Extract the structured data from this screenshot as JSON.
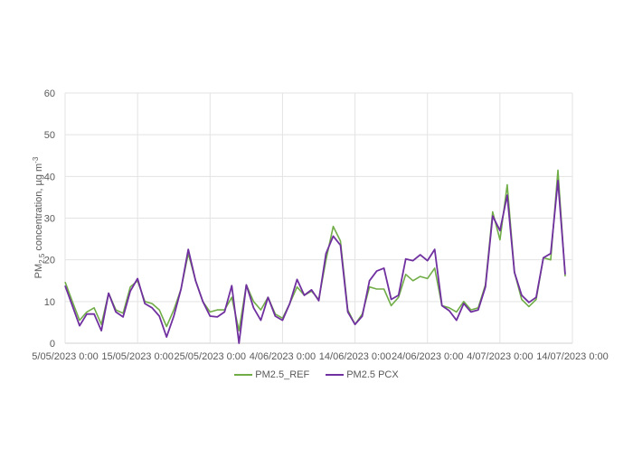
{
  "chart_data": {
    "type": "line",
    "title": "",
    "xlabel": "",
    "ylabel": "PM2.5 concentration, µg m-3",
    "ylabel_parts": {
      "main": "PM",
      "sub": "2.5",
      "rest": " concentration, µg m",
      "sup": "-3"
    },
    "ylim": [
      0,
      60
    ],
    "yticks": [
      0,
      10,
      20,
      30,
      40,
      50,
      60
    ],
    "xtick_labels": [
      "5/05/2023 0:00",
      "15/05/2023 0:00",
      "25/05/2023 0:00",
      "4/06/2023 0:00",
      "14/06/2023 0:00",
      "24/06/2023 0:00",
      "4/07/2023 0:00",
      "14/07/2023 0:00"
    ],
    "x_start": "5/05/2023",
    "x_interval_days": 1,
    "grid": true,
    "legend_position": "bottom",
    "series": [
      {
        "name": "PM2.5_REF",
        "color": "#70AD47",
        "values": [
          14.7,
          10,
          5.5,
          7.5,
          8.5,
          4.5,
          12,
          8,
          7.2,
          13.5,
          15,
          10,
          9.5,
          8,
          4,
          8,
          13,
          21.5,
          15,
          10,
          7.5,
          8,
          8,
          11,
          3,
          14,
          10,
          8,
          11,
          7,
          6,
          9.5,
          13.5,
          11.5,
          12.5,
          10.5,
          20,
          28,
          24.5,
          8,
          4.5,
          7,
          13.5,
          13,
          13,
          9,
          11,
          16.5,
          15,
          16,
          15.5,
          18,
          9,
          8.5,
          7.5,
          10,
          8,
          8.5,
          14,
          31.5,
          24.8,
          38,
          17,
          10.5,
          8.8,
          10.5,
          20.5,
          20,
          41.5,
          16
        ]
      },
      {
        "name": "PM2.5 PCX",
        "color": "#7030A0",
        "values": [
          13.8,
          9,
          4.2,
          7,
          7,
          3,
          12,
          7.5,
          6.3,
          12.5,
          15.5,
          9.5,
          8.5,
          6.5,
          1.5,
          6.5,
          13,
          22.5,
          15,
          10,
          6.5,
          6.3,
          7.5,
          13.8,
          0,
          14,
          8.5,
          5.5,
          11,
          6.5,
          5.5,
          9.5,
          15.3,
          11.5,
          12.8,
          10.2,
          21.5,
          25.7,
          23.5,
          7.5,
          4.5,
          6.5,
          15,
          17.3,
          18,
          10.5,
          11.5,
          20.2,
          19.8,
          21.2,
          19.8,
          22.5,
          9,
          7.8,
          5.5,
          9.5,
          7.5,
          8,
          13.5,
          30.5,
          27,
          35.5,
          17,
          11.5,
          9.8,
          11,
          20.5,
          21.5,
          39,
          16.5
        ]
      }
    ]
  },
  "legend": {
    "items": [
      {
        "label": "PM2.5_REF",
        "color": "#70AD47"
      },
      {
        "label": "PM2.5 PCX",
        "color": "#7030A0"
      }
    ]
  }
}
